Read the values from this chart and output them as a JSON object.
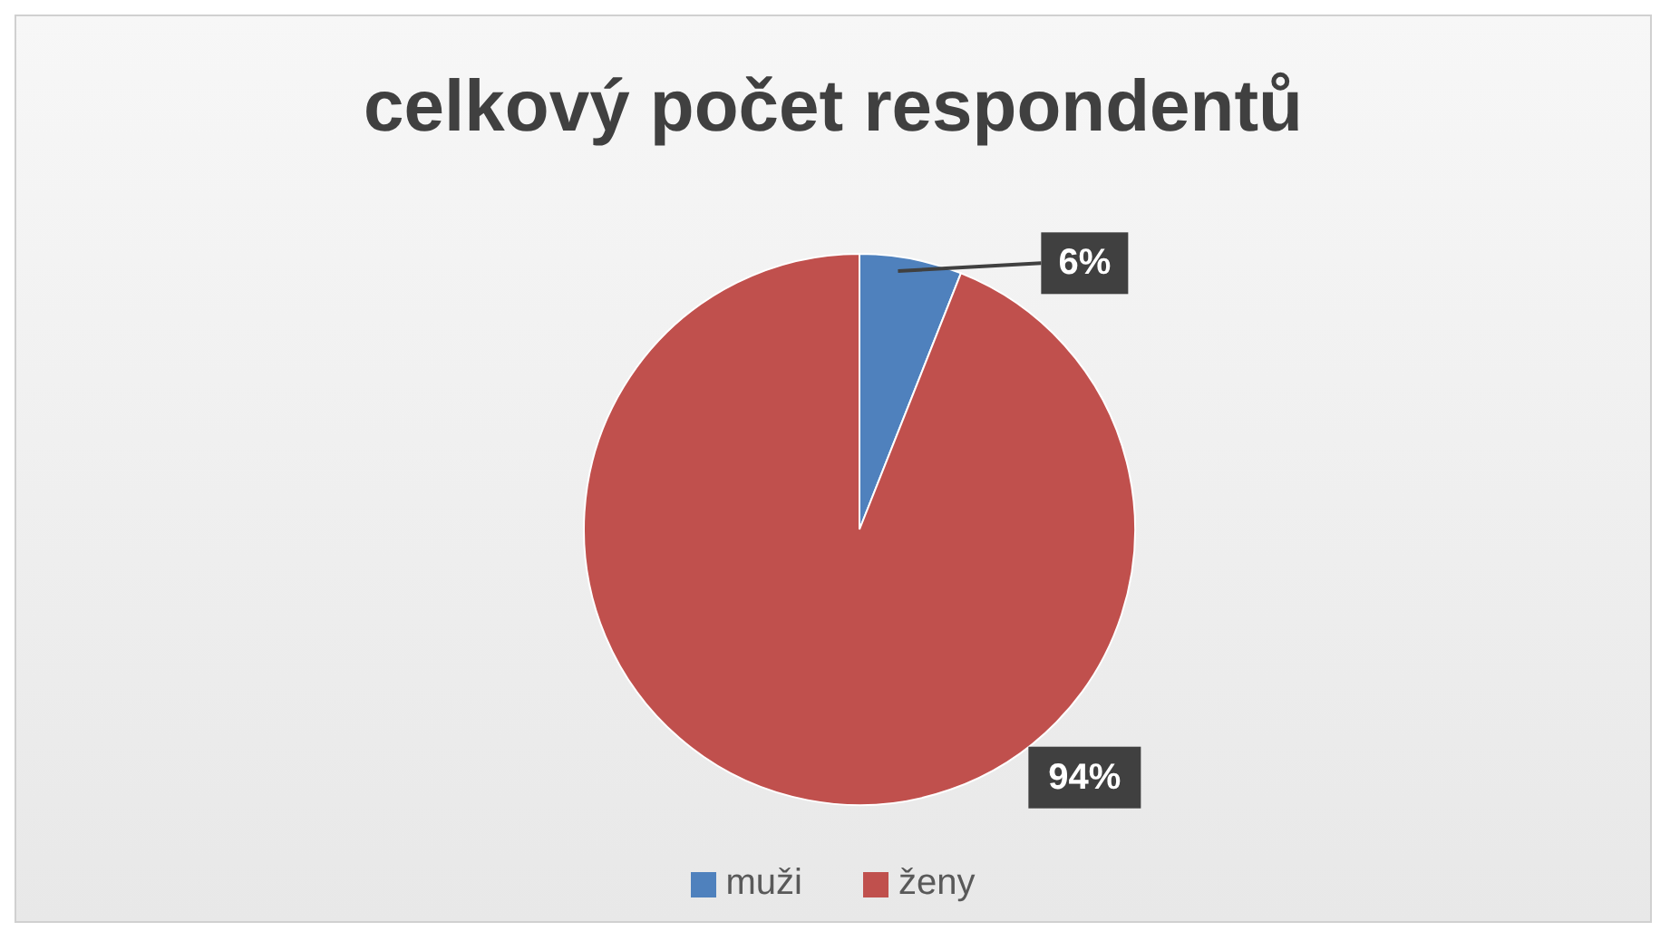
{
  "chart_data": {
    "type": "pie",
    "title": "celkový počet respondentů",
    "categories": [
      "muži",
      "ženy"
    ],
    "values": [
      6,
      94
    ],
    "colors": [
      "#4f81bd",
      "#c0504d"
    ],
    "value_labels": [
      "6%",
      "94%"
    ],
    "legend": "bottom"
  }
}
